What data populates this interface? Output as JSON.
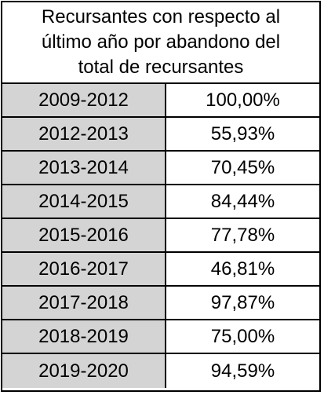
{
  "chart_data": {
    "type": "table",
    "title_lines": [
      "Recursantes con respecto al",
      "último año por abandono del",
      "total de recursantes"
    ],
    "rows": [
      {
        "period": "2009-2012",
        "value": "100,00%"
      },
      {
        "period": "2012-2013",
        "value": "55,93%"
      },
      {
        "period": "2013-2014",
        "value": "70,45%"
      },
      {
        "period": "2014-2015",
        "value": "84,44%"
      },
      {
        "period": "2015-2016",
        "value": "77,78%"
      },
      {
        "period": "2016-2017",
        "value": "46,81%"
      },
      {
        "period": "2017-2018",
        "value": "97,87%"
      },
      {
        "period": "2018-2019",
        "value": "75,00%"
      },
      {
        "period": "2019-2020",
        "value": "94,59%"
      }
    ],
    "values_percent": [
      100.0,
      55.93,
      70.45,
      84.44,
      77.78,
      46.81,
      97.87,
      75.0,
      94.59
    ]
  },
  "colors": {
    "period_cell_bg": "#d4d4d4",
    "value_cell_bg": "#ffffff",
    "border": "#000000"
  }
}
